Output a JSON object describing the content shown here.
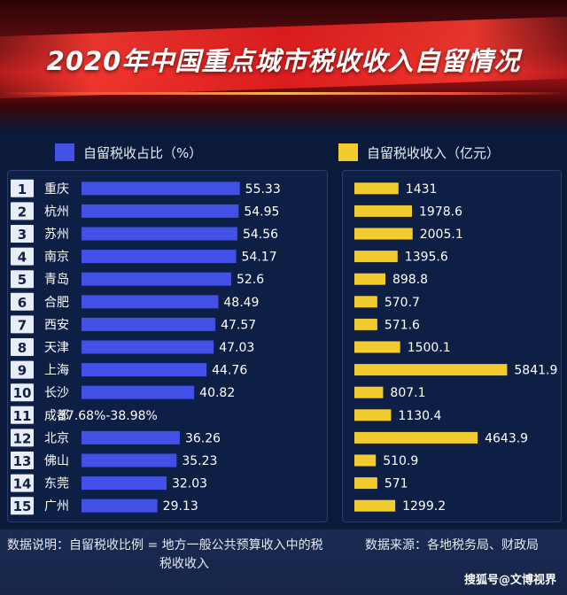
{
  "chart_data": {
    "type": "bar",
    "title": "2020年中国重点城市税收收入自留情况",
    "ranks": [
      "1",
      "2",
      "3",
      "4",
      "5",
      "6",
      "7",
      "8",
      "9",
      "10",
      "11",
      "12",
      "13",
      "14",
      "15"
    ],
    "categories": [
      "重庆",
      "杭州",
      "苏州",
      "南京",
      "青岛",
      "合肥",
      "西安",
      "天津",
      "上海",
      "长沙",
      "成都",
      "北京",
      "佛山",
      "东莞",
      "广州"
    ],
    "series": [
      {
        "name": "自留税收占比（%）",
        "color": "#4250e6",
        "values": [
          55.33,
          54.95,
          54.56,
          54.17,
          52.6,
          48.49,
          47.57,
          47.03,
          44.76,
          40.82,
          null,
          36.26,
          35.23,
          32.03,
          29.13
        ],
        "labels": [
          "55.33",
          "54.95",
          "54.56",
          "54.17",
          "52.6",
          "48.49",
          "47.57",
          "47.03",
          "44.76",
          "40.82",
          "37.68%-38.98%",
          "36.26",
          "35.23",
          "32.03",
          "29.13"
        ]
      },
      {
        "name": "自留税收收入（亿元）",
        "color": "#f2cc2f",
        "values": [
          1431,
          1978.6,
          2005.1,
          1395.6,
          898.8,
          570.7,
          571.6,
          1500.1,
          5841.9,
          807.1,
          1130.4,
          4643.9,
          510.9,
          571,
          1299.2
        ],
        "labels": [
          "1431",
          "1978.6",
          "2005.1",
          "1395.6",
          "898.8",
          "570.7",
          "571.6",
          "1500.1",
          "5841.9",
          "807.1",
          "1130.4",
          "4643.9",
          "510.9",
          "571",
          "1299.2"
        ]
      }
    ]
  },
  "notes": {
    "left_line1": "数据说明：自留税收比例 = 地方一般公共预算收入中的税",
    "left_line2": "税收收入",
    "right": "数据来源：各地税务局、财政局"
  },
  "watermark": "搜狐号@文博视界"
}
